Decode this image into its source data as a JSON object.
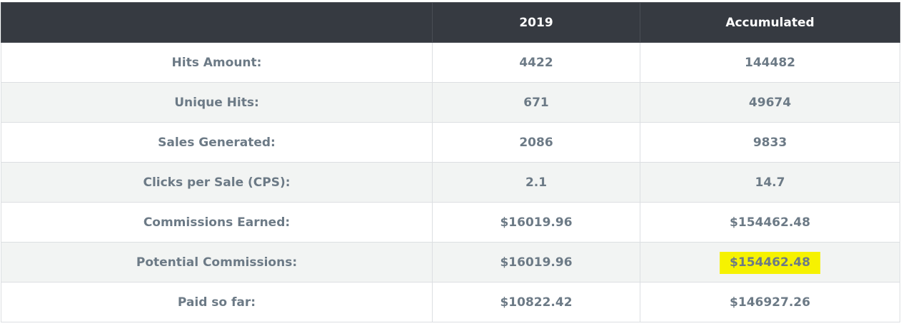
{
  "table": {
    "header": {
      "label_col": "",
      "year_col": "2019",
      "accumulated_col": "Accumulated"
    },
    "rows": [
      {
        "label": "Hits Amount:",
        "year": "4422",
        "accumulated": "144482"
      },
      {
        "label": "Unique Hits:",
        "year": "671",
        "accumulated": "49674"
      },
      {
        "label": "Sales Generated:",
        "year": "2086",
        "accumulated": "9833"
      },
      {
        "label": "Clicks per Sale (CPS):",
        "year": "2.1",
        "accumulated": "14.7"
      },
      {
        "label": "Commissions Earned:",
        "year": "$16019.96",
        "accumulated": "$154462.48"
      },
      {
        "label": "Potential Commissions:",
        "year": "$16019.96",
        "accumulated": "$154462.48",
        "accumulated_highlighted": true
      },
      {
        "label": "Paid so far:",
        "year": "$10822.42",
        "accumulated": "$146927.26"
      }
    ]
  },
  "colors": {
    "header_bg": "#363a41",
    "header_text": "#ffffff",
    "cell_text": "#6c7a86",
    "stripe_bg": "#f2f4f3",
    "highlight": "#f6f200"
  }
}
